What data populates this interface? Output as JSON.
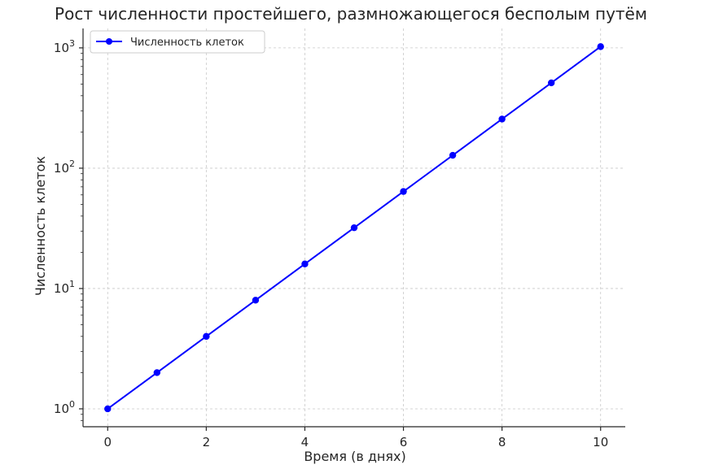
{
  "chart_data": {
    "type": "line",
    "title": "Рост численности простейшего, размножающегося бесполым путём",
    "xlabel": "Время (в днях)",
    "ylabel": "Численность клеток",
    "x": [
      0,
      1,
      2,
      3,
      4,
      5,
      6,
      7,
      8,
      9,
      10
    ],
    "series": [
      {
        "name": "Численность клеток",
        "values": [
          1,
          2,
          4,
          8,
          16,
          32,
          64,
          128,
          256,
          512,
          1024
        ],
        "color": "#0000ff",
        "marker": "circle"
      }
    ],
    "xlim": [
      -0.5,
      10.5
    ],
    "ylim": [
      0.71,
      1450
    ],
    "yscale": "log",
    "xticks": [
      "0",
      "2",
      "4",
      "6",
      "8",
      "10"
    ],
    "yticks": [
      {
        "base": "10",
        "exp": "0"
      },
      {
        "base": "10",
        "exp": "1"
      },
      {
        "base": "10",
        "exp": "2"
      },
      {
        "base": "10",
        "exp": "3"
      }
    ],
    "grid": true,
    "legend_position": "top-left"
  }
}
